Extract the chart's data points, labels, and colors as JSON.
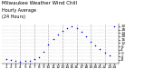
{
  "title": "Milwaukee Weather Wind Chill",
  "subtitle1": "Hourly Average",
  "subtitle2": "(24 Hours)",
  "hours": [
    1,
    2,
    3,
    4,
    5,
    6,
    7,
    8,
    9,
    10,
    11,
    12,
    13,
    14,
    15,
    16,
    17,
    18,
    19,
    20,
    21,
    22,
    23,
    24
  ],
  "wind_chill": [
    -7,
    -8,
    -9,
    -10,
    -9,
    -9,
    -7,
    -5,
    2,
    10,
    17,
    22,
    27,
    30,
    32,
    30,
    25,
    20,
    14,
    9,
    5,
    0,
    -3,
    32
  ],
  "dot_color": "#0000dd",
  "bg_color": "#ffffff",
  "grid_color": "#aaaaaa",
  "ylim": [
    -12,
    35
  ],
  "xlim": [
    0,
    25
  ],
  "ytick_values": [
    32,
    28,
    24,
    20,
    16,
    12,
    8,
    4,
    0,
    -4,
    -8
  ],
  "xtick_values": [
    1,
    2,
    3,
    4,
    5,
    6,
    7,
    8,
    9,
    10,
    11,
    12,
    13,
    14,
    15,
    16,
    17,
    18,
    19,
    20,
    21,
    22,
    23,
    24
  ],
  "vgrid_positions": [
    4,
    7,
    10,
    13,
    16,
    19,
    22
  ],
  "title_fontsize": 4.0,
  "subtitle_fontsize": 3.5,
  "tick_fontsize": 3.0
}
